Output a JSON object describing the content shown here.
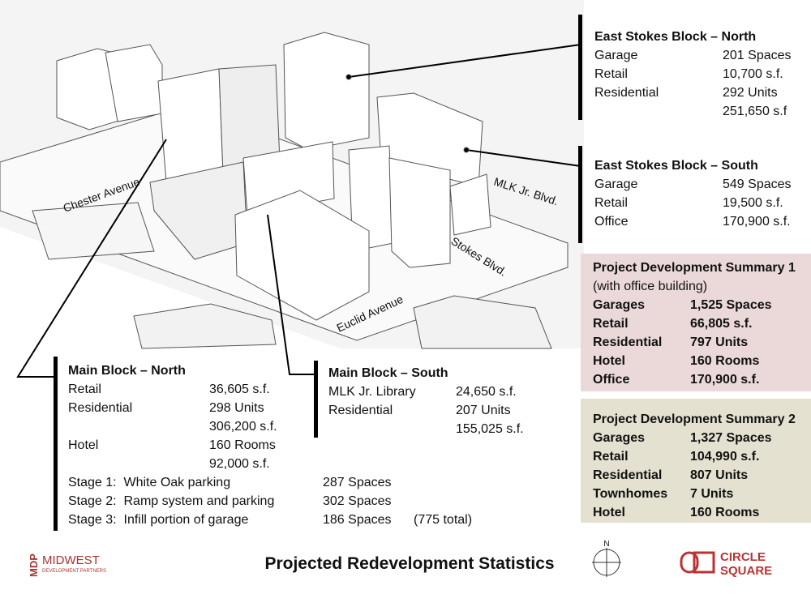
{
  "title": "Projected Redevelopment Statistics",
  "streets": [
    "Chester Avenue",
    "MLK Jr. Blvd.",
    "Stokes Blvd.",
    "Euclid Avenue"
  ],
  "east_north": {
    "title": "East Stokes Block – North",
    "rows": [
      {
        "label": "Garage",
        "values": [
          "201 Spaces"
        ]
      },
      {
        "label": "Retail",
        "values": [
          "10,700 s.f."
        ]
      },
      {
        "label": "Residential",
        "values": [
          "292 Units",
          "251,650 s.f"
        ]
      }
    ]
  },
  "east_south": {
    "title": "East Stokes Block – South",
    "rows": [
      {
        "label": "Garage",
        "values": [
          "549 Spaces"
        ]
      },
      {
        "label": "Retail",
        "values": [
          "19,500 s.f."
        ]
      },
      {
        "label": "Office",
        "values": [
          "170,900 s.f."
        ]
      }
    ]
  },
  "summary_1": {
    "title": "Project Development Summary 1",
    "subtitle": "(with office building)",
    "rows": [
      {
        "label": "Garages",
        "values": [
          "1,525 Spaces"
        ]
      },
      {
        "label": "Retail",
        "values": [
          "66,805 s.f."
        ]
      },
      {
        "label": "Residential",
        "values": [
          "797 Units"
        ]
      },
      {
        "label": "Hotel",
        "values": [
          "160 Rooms"
        ]
      },
      {
        "label": "Office",
        "values": [
          "170,900 s.f."
        ]
      }
    ]
  },
  "summary_2": {
    "title": "Project Development Summary 2",
    "rows": [
      {
        "label": "Garages",
        "values": [
          "1,327 Spaces"
        ]
      },
      {
        "label": "Retail",
        "values": [
          "104,990 s.f."
        ]
      },
      {
        "label": "Residential",
        "values": [
          "807 Units"
        ]
      },
      {
        "label": "Townhomes",
        "values": [
          "7 Units"
        ]
      },
      {
        "label": "Hotel",
        "values": [
          "160 Rooms"
        ]
      }
    ]
  },
  "main_north": {
    "title": "Main Block – North",
    "rows": [
      {
        "label": "Retail",
        "values": [
          "36,605 s.f."
        ]
      },
      {
        "label": "Residential",
        "values": [
          "298 Units",
          "306,200 s.f."
        ]
      },
      {
        "label": "Hotel",
        "values": [
          "160 Rooms",
          "92,000 s.f."
        ]
      }
    ],
    "stages": [
      {
        "label": "Stage 1:  White Oak parking",
        "values": [
          "287 Spaces"
        ]
      },
      {
        "label": "Stage 2:  Ramp system and parking",
        "values": [
          "302 Spaces"
        ]
      },
      {
        "label": "Stage 3:  Infill portion of garage",
        "values": [
          "186 Spaces",
          "(775 total)"
        ]
      }
    ]
  },
  "main_south": {
    "title": "Main Block – South",
    "rows": [
      {
        "label": "MLK Jr. Library",
        "values": [
          "24,650 s.f."
        ]
      },
      {
        "label": "Residential",
        "values": [
          "207 Units",
          "155,025 s.f."
        ]
      }
    ]
  },
  "logos": {
    "mdp_mark": "MDP",
    "mdp_name": "MIDWEST",
    "mdp_sub": "DEVELOPMENT PARTNERS",
    "compass": "N",
    "cs_1": "CIRCLE",
    "cs_2": "SQUARE"
  }
}
